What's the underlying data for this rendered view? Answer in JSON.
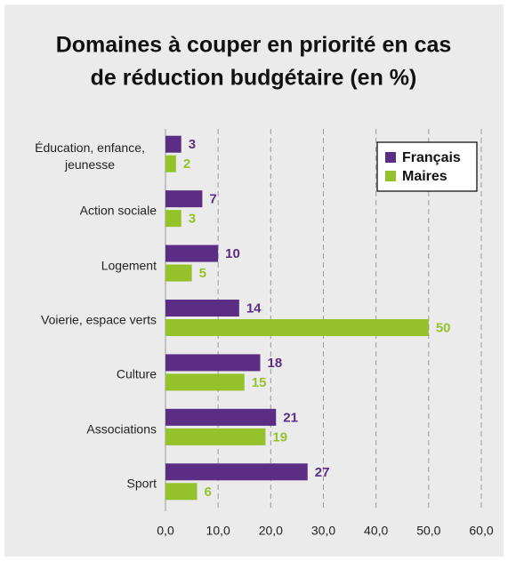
{
  "chart_data": {
    "type": "bar",
    "orientation": "horizontal",
    "title": [
      "Domaines à couper en priorité en cas",
      "de réduction budgétaire (en %)"
    ],
    "categories": [
      "Éducation, enfance, jeunesse",
      "Action sociale",
      "Logement",
      "Voierie, espace verts",
      "Culture",
      "Associations",
      "Sport"
    ],
    "series": [
      {
        "name": "Français",
        "color": "#5c2d84",
        "values": [
          3,
          7,
          10,
          14,
          18,
          21,
          27
        ]
      },
      {
        "name": "Maires",
        "color": "#95c12b",
        "values": [
          2,
          3,
          5,
          50,
          15,
          19,
          6
        ]
      }
    ],
    "xlim": [
      0,
      60
    ],
    "xticks": [
      {
        "value": 0,
        "label": "0,0"
      },
      {
        "value": 10,
        "label": "10,0"
      },
      {
        "value": 20,
        "label": "20,0"
      },
      {
        "value": 30,
        "label": "30,0"
      },
      {
        "value": 40,
        "label": "40,0"
      },
      {
        "value": 50,
        "label": "50,0"
      },
      {
        "value": 60,
        "label": "60,0"
      }
    ],
    "grid": true,
    "legend": "top-right"
  }
}
